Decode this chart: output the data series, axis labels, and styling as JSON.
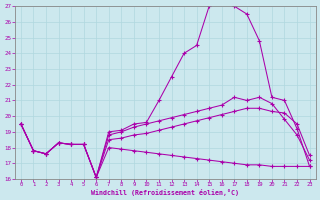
{
  "xlabel": "Windchill (Refroidissement éolien,°C)",
  "background_color": "#cce8ee",
  "line_color": "#aa00aa",
  "grid_color": "#b0d8df",
  "xlim": [
    -0.5,
    23.5
  ],
  "ylim": [
    16,
    27
  ],
  "yticks": [
    16,
    17,
    18,
    19,
    20,
    21,
    22,
    23,
    24,
    25,
    26,
    27
  ],
  "xticks": [
    0,
    1,
    2,
    3,
    4,
    5,
    6,
    7,
    8,
    9,
    10,
    11,
    12,
    13,
    14,
    15,
    16,
    17,
    18,
    19,
    20,
    21,
    22,
    23
  ],
  "lines": [
    [
      19.5,
      17.8,
      17.6,
      18.3,
      18.2,
      18.2,
      16.1,
      19.0,
      19.1,
      19.5,
      19.6,
      21.0,
      22.5,
      24.0,
      24.5,
      27.0,
      27.2,
      27.0,
      26.5,
      24.8,
      21.2,
      21.0,
      19.2,
      16.8
    ],
    [
      19.5,
      17.8,
      17.6,
      18.3,
      18.2,
      18.2,
      16.1,
      18.8,
      19.0,
      19.3,
      19.5,
      19.7,
      19.9,
      20.1,
      20.3,
      20.5,
      20.7,
      21.2,
      21.0,
      21.2,
      20.8,
      19.8,
      18.8,
      17.2
    ],
    [
      19.5,
      17.8,
      17.6,
      18.3,
      18.2,
      18.2,
      16.1,
      18.5,
      18.6,
      18.8,
      18.9,
      19.1,
      19.3,
      19.5,
      19.7,
      19.9,
      20.1,
      20.3,
      20.5,
      20.5,
      20.3,
      20.2,
      19.5,
      17.5
    ],
    [
      19.5,
      17.8,
      17.6,
      18.3,
      18.2,
      18.2,
      16.1,
      18.0,
      17.9,
      17.8,
      17.7,
      17.6,
      17.5,
      17.4,
      17.3,
      17.2,
      17.1,
      17.0,
      16.9,
      16.9,
      16.8,
      16.8,
      16.8,
      16.8
    ]
  ]
}
